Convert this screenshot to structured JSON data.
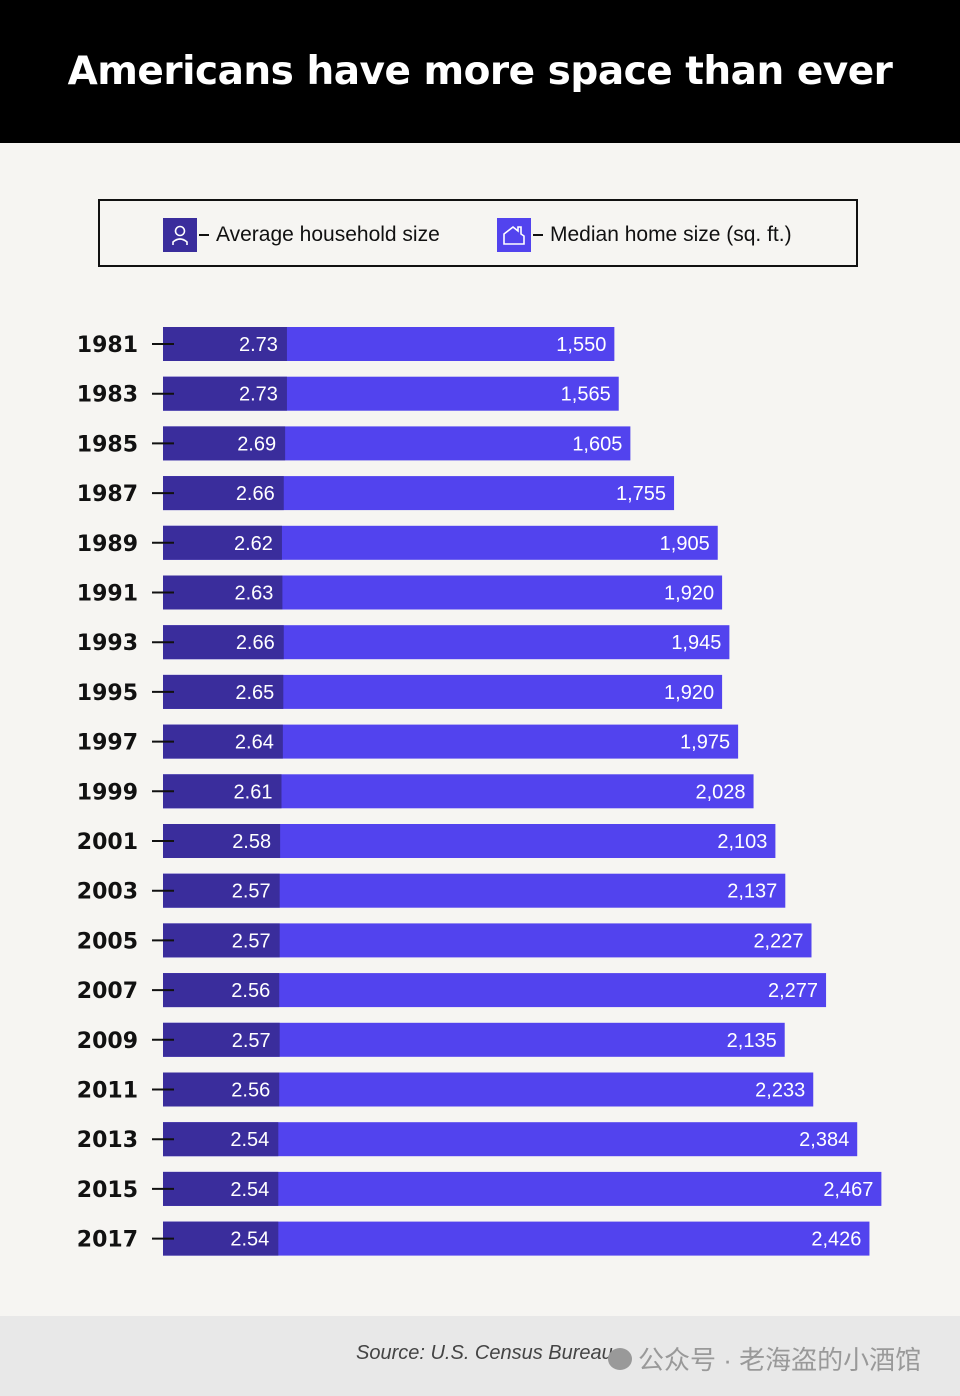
{
  "title": "Americans have more space than ever",
  "legend": {
    "household": {
      "label": "Average household size",
      "icon": "person-icon"
    },
    "home": {
      "label": "Median home size (sq. ft.)",
      "icon": "house-icon"
    }
  },
  "colors": {
    "household": "#3a2d9c",
    "home": "#5243ee",
    "background": "#f6f5f2",
    "header": "#000000"
  },
  "chart_data": {
    "type": "bar",
    "orientation": "horizontal",
    "categories": [
      "1981",
      "1983",
      "1985",
      "1987",
      "1989",
      "1991",
      "1993",
      "1995",
      "1997",
      "1999",
      "2001",
      "2003",
      "2005",
      "2007",
      "2009",
      "2011",
      "2013",
      "2015",
      "2017"
    ],
    "series": [
      {
        "name": "Average household size",
        "values": [
          2.73,
          2.73,
          2.69,
          2.66,
          2.62,
          2.63,
          2.66,
          2.65,
          2.64,
          2.61,
          2.58,
          2.57,
          2.57,
          2.56,
          2.57,
          2.56,
          2.54,
          2.54,
          2.54
        ]
      },
      {
        "name": "Median home size (sq. ft.)",
        "values": [
          1550,
          1565,
          1605,
          1755,
          1905,
          1920,
          1945,
          1920,
          1975,
          2028,
          2103,
          2137,
          2227,
          2277,
          2135,
          2233,
          2384,
          2467,
          2426
        ]
      }
    ],
    "data_labels": {
      "household": [
        "2.73",
        "2.73",
        "2.69",
        "2.66",
        "2.62",
        "2.63",
        "2.66",
        "2.65",
        "2.64",
        "2.61",
        "2.58",
        "2.57",
        "2.57",
        "2.56",
        "2.57",
        "2.56",
        "2.54",
        "2.54",
        "2.54"
      ],
      "home": [
        "1,550",
        "1,565",
        "1,605",
        "1,755",
        "1,905",
        "1,920",
        "1,945",
        "1,920",
        "1,975",
        "2,028",
        "2,103",
        "2,137",
        "2,227",
        "2,277",
        "2,135",
        "2,233",
        "2,384",
        "2,467",
        "2,426"
      ]
    }
  },
  "footer": {
    "source": "Source: U.S. Census Bureau",
    "watermark": "公众号 · 老海盗的小酒馆"
  }
}
